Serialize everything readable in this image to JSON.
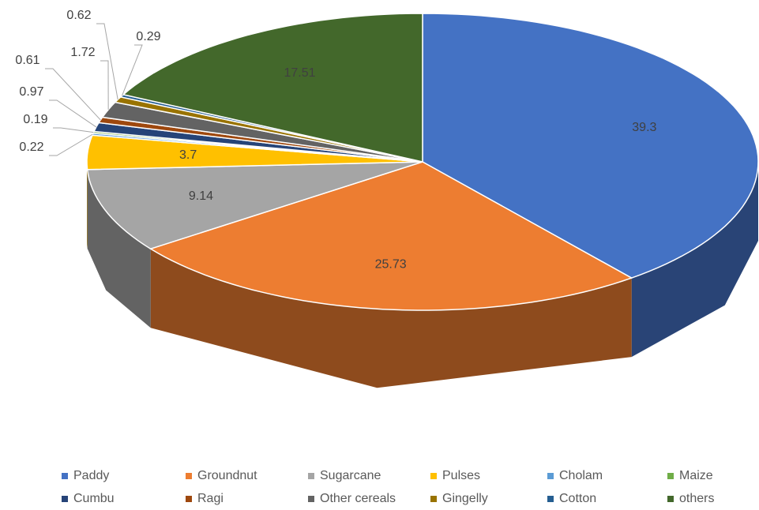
{
  "chart_data": {
    "type": "pie",
    "three_d": true,
    "categories": [
      "Paddy",
      "Groundnut",
      "Sugarcane",
      "Pulses",
      "Cholam",
      "Maize",
      "Cumbu",
      "Ragi",
      "Other cereals",
      "Gingelly",
      "Cotton",
      "others"
    ],
    "values": [
      39.3,
      25.73,
      9.14,
      3.7,
      0.22,
      0.19,
      0.97,
      0.61,
      1.72,
      0.62,
      0.29,
      17.51
    ],
    "colors": [
      "#4472c4",
      "#ed7d31",
      "#a5a5a5",
      "#ffc000",
      "#5b9bd5",
      "#70ad47",
      "#264478",
      "#9e480e",
      "#636363",
      "#997300",
      "#255e91",
      "#43682b"
    ],
    "legend": "bottom"
  }
}
